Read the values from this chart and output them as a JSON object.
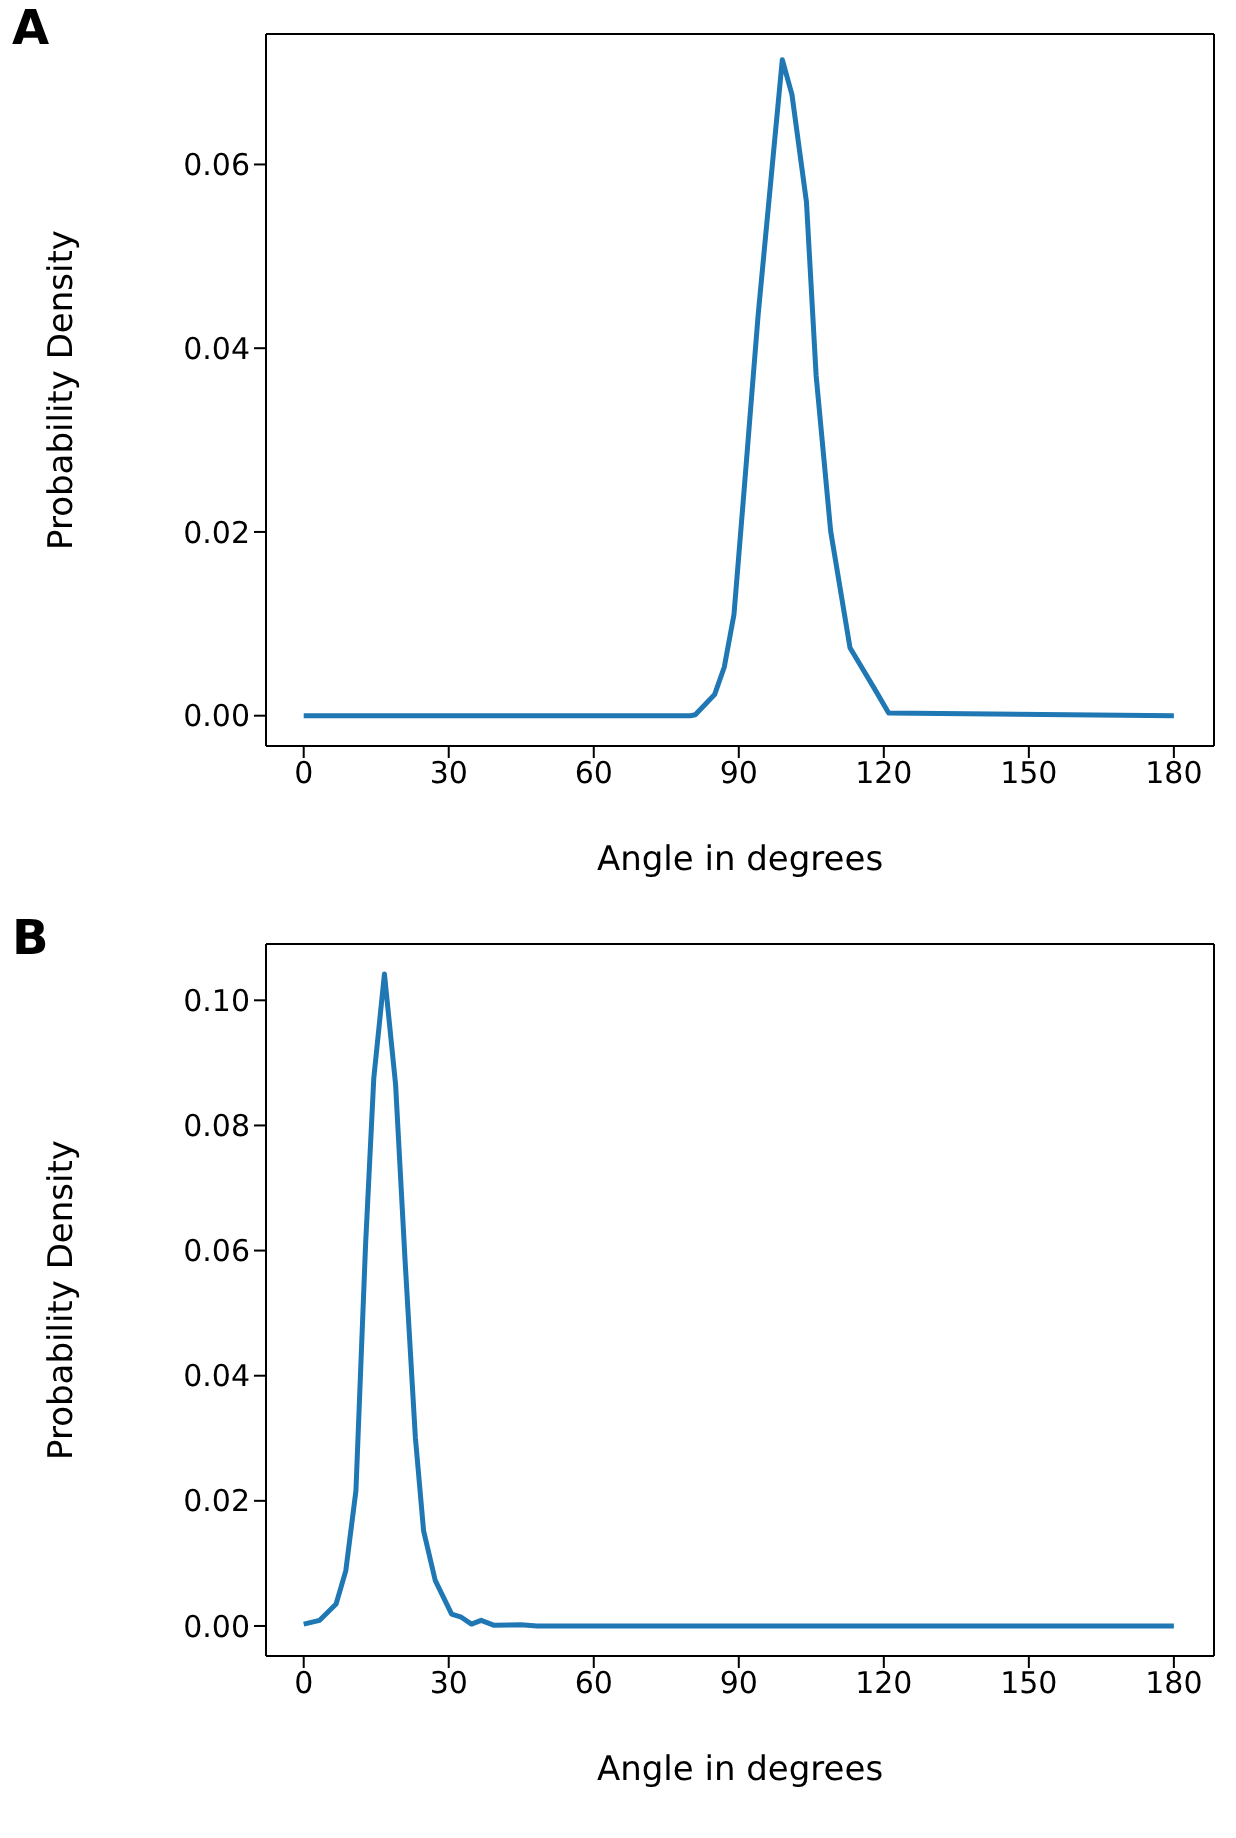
{
  "chart_data": [
    {
      "type": "line",
      "title": "A",
      "xlabel": "Angle in degrees",
      "ylabel": "Probability Density",
      "xlim": [
        -7.8,
        188.3
      ],
      "xticks": [
        0,
        30,
        60,
        90,
        120,
        150,
        180
      ],
      "ylim": [
        -0.0033,
        0.0742
      ],
      "yticks": [
        {
          "value": 0,
          "label": "0.00"
        },
        {
          "value": 0.02,
          "label": "0.02"
        },
        {
          "value": 0.04,
          "label": "0.04"
        },
        {
          "value": 0.06,
          "label": "0.06"
        }
      ],
      "series": [
        {
          "color": "#1f77b4",
          "x": [
            0,
            80,
            81,
            85,
            87,
            89,
            91,
            94,
            97,
            99,
            101,
            104,
            106,
            109,
            113,
            118,
            121,
            180
          ],
          "values": [
            0,
            0,
            0.0001,
            0.0023,
            0.0053,
            0.011,
            0.0239,
            0.0436,
            0.0603,
            0.0714,
            0.0676,
            0.0559,
            0.037,
            0.0201,
            0.0074,
            0.003,
            0.0003,
            0
          ]
        }
      ]
    },
    {
      "type": "line",
      "title": "B",
      "xlabel": "Angle in degrees",
      "ylabel": "Probability Density",
      "xlim": [
        -7.8,
        188.3
      ],
      "xticks": [
        0,
        30,
        60,
        90,
        120,
        150,
        180
      ],
      "ylim": [
        -0.0048,
        0.109
      ],
      "yticks": [
        {
          "value": 0,
          "label": "0.00"
        },
        {
          "value": 0.02,
          "label": "0.02"
        },
        {
          "value": 0.04,
          "label": "0.04"
        },
        {
          "value": 0.06,
          "label": "0.06"
        },
        {
          "value": 0.08,
          "label": "0.08"
        },
        {
          "value": 0.1,
          "label": "0.10"
        }
      ],
      "series": [
        {
          "color": "#1f77b4",
          "x": [
            0,
            3.3,
            6.7,
            8.7,
            10.8,
            12.8,
            14.5,
            16.7,
            19,
            21,
            23.1,
            24.8,
            27.2,
            30.6,
            32.6,
            34.7,
            36.7,
            39.4,
            44.9,
            48.3,
            180
          ],
          "values": [
            0.0003,
            0.0009,
            0.0035,
            0.0088,
            0.0216,
            0.061,
            0.0876,
            0.1042,
            0.0866,
            0.058,
            0.0301,
            0.0152,
            0.0073,
            0.0019,
            0.0014,
            0.0003,
            0.0009,
            0.0001,
            0.0002,
            0,
            0
          ]
        }
      ]
    }
  ]
}
